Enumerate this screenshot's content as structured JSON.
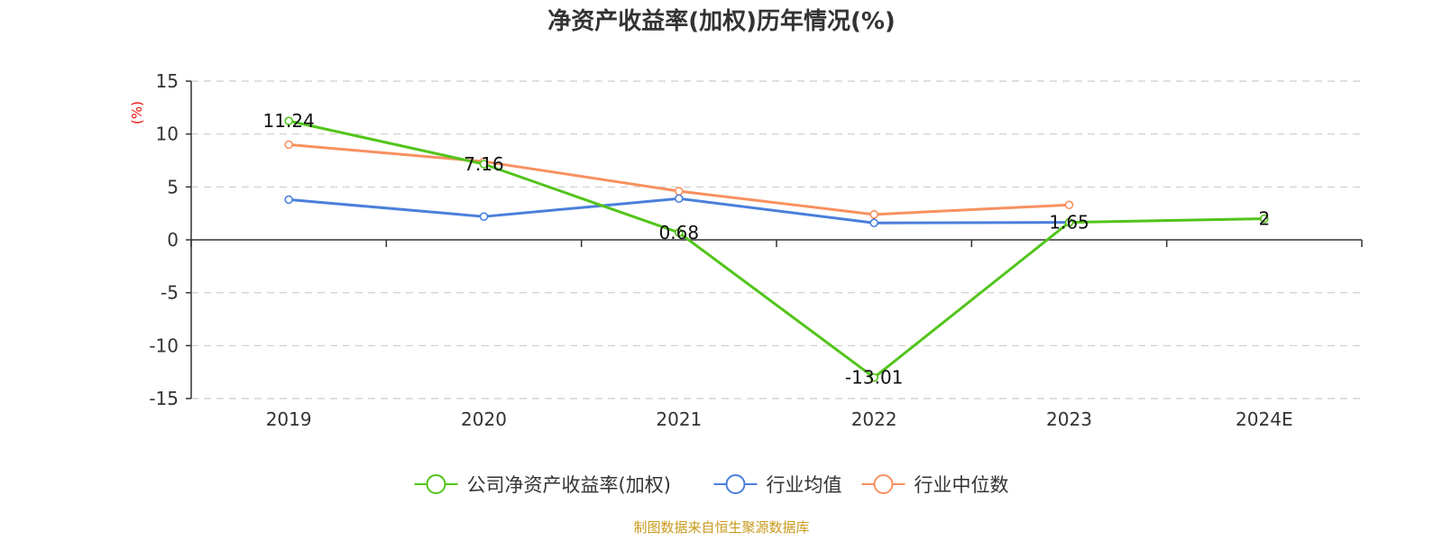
{
  "chart_data": {
    "type": "line",
    "title": "净资产收益率(加权)历年情况(%)",
    "ylabel": "(%)",
    "xlabel": "",
    "categories": [
      "2019",
      "2020",
      "2021",
      "2022",
      "2023",
      "2024E"
    ],
    "ylim": [
      -15,
      15
    ],
    "yticks": [
      15,
      10,
      5,
      0,
      -5,
      -10,
      -15
    ],
    "grid": true,
    "legend_position": "bottom",
    "series": [
      {
        "name": "公司净资产收益率(加权)",
        "color": "#52c41a",
        "values": [
          11.24,
          7.16,
          0.68,
          -13.01,
          1.65,
          2
        ],
        "labels": [
          "11.24",
          "7.16",
          "0.68",
          "-13.01",
          "1.65",
          "2"
        ]
      },
      {
        "name": "行业均值",
        "color": "#4a7fdc",
        "values": [
          3.8,
          2.2,
          3.9,
          1.6,
          1.65,
          null
        ],
        "labels": []
      },
      {
        "name": "行业中位数",
        "color": "#f89060",
        "values": [
          9.0,
          7.4,
          4.6,
          2.4,
          3.3,
          null
        ],
        "labels": []
      }
    ]
  },
  "source": "制图数据来自恒生聚源数据库"
}
